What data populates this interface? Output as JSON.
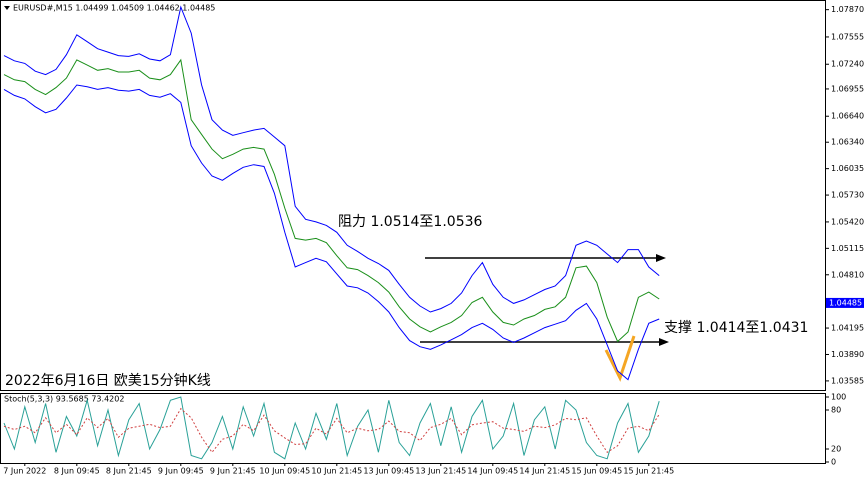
{
  "chart_data": [
    {
      "type": "line",
      "title": "EURUSD#,M15  1.04499 1.04509 1.04462 1.04485",
      "categories": [
        null,
        null,
        "7 Jun 2022",
        null,
        null,
        null,
        null,
        "8 Jun 09:45",
        null,
        null,
        null,
        null,
        "8 Jun 21:45",
        null,
        null,
        null,
        null,
        "9 Jun 09:45",
        null,
        null,
        null,
        null,
        "9 Jun 21:45",
        null,
        null,
        null,
        null,
        "10 Jun 09:45",
        null,
        null,
        null,
        null,
        "10 Jun 21:45",
        null,
        null,
        null,
        null,
        "13 Jun 09:45",
        null,
        null,
        null,
        null,
        "13 Jun 21:45",
        null,
        null,
        null,
        null,
        "14 Jun 09:45",
        null,
        null,
        null,
        null,
        "14 Jun 21:45",
        null,
        null,
        null,
        null,
        "15 Jun 09:45",
        null,
        null,
        null,
        null,
        "15 Jun 21:45",
        null
      ],
      "series": [
        {
          "color": "#1a8f1a",
          "values": [
            1.0712,
            1.0706,
            1.0704,
            1.0695,
            1.0689,
            1.0697,
            1.0708,
            1.0729,
            1.0723,
            1.0717,
            1.0719,
            1.0715,
            1.0715,
            1.0717,
            1.0708,
            1.0706,
            1.0712,
            1.0729,
            1.066,
            1.0643,
            1.0626,
            1.0615,
            1.062,
            1.0626,
            1.0628,
            1.0626,
            1.0597,
            1.0558,
            1.0523,
            1.0521,
            1.0523,
            1.0518,
            1.0503,
            1.0489,
            1.0487,
            1.048,
            1.0472,
            1.0461,
            1.0444,
            1.043,
            1.0421,
            1.0415,
            1.0421,
            1.0426,
            1.0434,
            1.0449,
            1.0455,
            1.0438,
            1.0426,
            1.0423,
            1.043,
            1.0434,
            1.0441,
            1.0444,
            1.0455,
            1.0489,
            1.0491,
            1.0472,
            1.0432,
            1.0404,
            1.0415,
            1.0455,
            1.0461,
            1.0453
          ]
        },
        {
          "color": "#0000ff",
          "values": [
            1.0734,
            1.0728,
            1.0725,
            1.0716,
            1.0712,
            1.0718,
            1.0735,
            1.0758,
            1.075,
            1.0742,
            1.0738,
            1.0734,
            1.0733,
            1.0736,
            1.073,
            1.0728,
            1.0735,
            1.079,
            1.076,
            1.07,
            1.066,
            1.0648,
            1.0642,
            1.0645,
            1.0648,
            1.065,
            1.064,
            1.063,
            1.056,
            1.0545,
            1.0542,
            1.0538,
            1.053,
            1.0515,
            1.0508,
            1.05,
            1.0494,
            1.0486,
            1.047,
            1.0455,
            1.0445,
            1.0438,
            1.0442,
            1.0448,
            1.046,
            1.048,
            1.0495,
            1.047,
            1.0455,
            1.0448,
            1.0452,
            1.0458,
            1.0464,
            1.0468,
            1.048,
            1.0515,
            1.052,
            1.0515,
            1.0505,
            1.0495,
            1.051,
            1.051,
            1.049,
            1.048
          ]
        },
        {
          "color": "#0000ff",
          "values": [
            1.0695,
            1.0688,
            1.0684,
            1.0675,
            1.0668,
            1.0672,
            1.0685,
            1.07,
            1.0698,
            1.0695,
            1.0697,
            1.0694,
            1.0693,
            1.0695,
            1.0688,
            1.0686,
            1.069,
            1.068,
            1.063,
            1.061,
            1.0595,
            1.059,
            1.0598,
            1.0605,
            1.0608,
            1.0606,
            1.0575,
            1.053,
            1.049,
            1.0495,
            1.05,
            1.0496,
            1.0482,
            1.0468,
            1.0466,
            1.046,
            1.045,
            1.0438,
            1.042,
            1.0405,
            1.0398,
            1.0395,
            1.04,
            1.0406,
            1.0412,
            1.042,
            1.0425,
            1.0418,
            1.0408,
            1.0403,
            1.0408,
            1.0414,
            1.042,
            1.0424,
            1.0428,
            1.044,
            1.0448,
            1.043,
            1.04,
            1.037,
            1.036,
            1.0395,
            1.0425,
            1.043
          ]
        }
      ],
      "ylim": [
        1.0348,
        1.0797
      ],
      "yticks": [
        {
          "value": 1.0787,
          "label": "1.07870"
        },
        {
          "value": 1.07555,
          "label": "1.07555"
        },
        {
          "value": 1.0724,
          "label": "1.07240"
        },
        {
          "value": 1.06955,
          "label": "1.06955"
        },
        {
          "value": 1.0664,
          "label": "1.06640"
        },
        {
          "value": 1.0634,
          "label": "1.06340"
        },
        {
          "value": 1.06035,
          "label": "1.06035"
        },
        {
          "value": 1.0573,
          "label": "1.05730"
        },
        {
          "value": 1.0542,
          "label": "1.05420"
        },
        {
          "value": 1.05115,
          "label": "1.05115"
        },
        {
          "value": 1.0481,
          "label": "1.04810"
        },
        {
          "value": 1.04195,
          "label": "1.04195"
        },
        {
          "value": 1.0389,
          "label": "1.03890"
        },
        {
          "value": 1.03585,
          "label": "1.03585"
        }
      ],
      "last_price": {
        "value": 1.04485,
        "label": "1.04485"
      },
      "annotations": [
        "阻力 1.0514至1.0536",
        "支撑 1.0414至1.0431",
        "2022年6月16日 欧美15分钟K线"
      ]
    },
    {
      "type": "line",
      "title": "Stoch(5,3,3) 93.5685 73.4202",
      "series": [
        {
          "color": "#2aa198",
          "values": [
            60,
            20,
            85,
            30,
            90,
            15,
            70,
            40,
            95,
            25,
            80,
            10,
            65,
            90,
            20,
            50,
            95,
            100,
            10,
            5,
            30,
            70,
            20,
            85,
            40,
            90,
            15,
            5,
            60,
            20,
            75,
            35,
            90,
            10,
            55,
            80,
            15,
            95,
            30,
            10,
            60,
            90,
            25,
            85,
            15,
            70,
            95,
            20,
            40,
            90,
            10,
            65,
            85,
            20,
            95,
            80,
            30,
            10,
            5,
            60,
            90,
            15,
            40,
            93.5685
          ]
        },
        {
          "color": "#d04040",
          "values": [
            55,
            50,
            55,
            45,
            68,
            45,
            58,
            42,
            68,
            53,
            67,
            38,
            52,
            55,
            58,
            53,
            55,
            82,
            68,
            38,
            15,
            35,
            40,
            58,
            48,
            72,
            48,
            37,
            27,
            28,
            52,
            43,
            67,
            45,
            52,
            48,
            50,
            63,
            47,
            45,
            33,
            53,
            58,
            67,
            42,
            57,
            60,
            62,
            52,
            50,
            47,
            55,
            53,
            57,
            67,
            65,
            68,
            40,
            15,
            25,
            52,
            55,
            48,
            73.4202
          ]
        }
      ],
      "ylim": [
        0,
        100
      ],
      "yticks": [
        100,
        80,
        20,
        0
      ]
    }
  ]
}
